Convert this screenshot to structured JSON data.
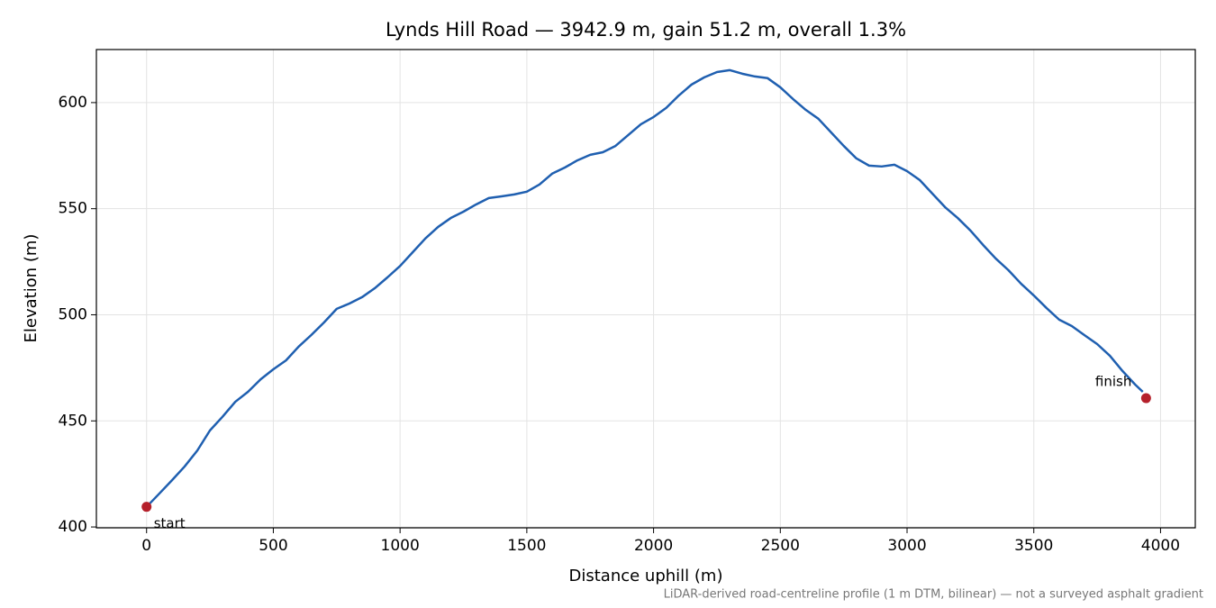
{
  "chart_data": {
    "type": "line",
    "title": "Lynds Hill Road — 3942.9 m, gain 51.2 m, overall 1.3%",
    "xlabel": "Distance uphill (m)",
    "ylabel": "Elevation (m)",
    "note": "LiDAR-derived road-centreline profile (1 m DTM, bilinear) — not a surveyed asphalt gradient",
    "x": [
      0,
      50,
      100,
      150,
      200,
      250,
      300,
      350,
      400,
      450,
      500,
      550,
      600,
      650,
      700,
      750,
      800,
      850,
      900,
      950,
      1000,
      1050,
      1100,
      1150,
      1200,
      1250,
      1300,
      1350,
      1400,
      1450,
      1500,
      1550,
      1600,
      1650,
      1700,
      1750,
      1800,
      1850,
      1900,
      1950,
      2000,
      2050,
      2100,
      2150,
      2200,
      2250,
      2300,
      2350,
      2400,
      2450,
      2500,
      2550,
      2600,
      2650,
      2700,
      2750,
      2800,
      2850,
      2900,
      2950,
      3000,
      3050,
      3100,
      3150,
      3200,
      3250,
      3300,
      3350,
      3400,
      3450,
      3500,
      3550,
      3600,
      3650,
      3700,
      3750,
      3800,
      3850,
      3900,
      3930
    ],
    "series": [
      {
        "color": "#1f5fb0",
        "values": [
          409.5,
          415.7,
          422,
          428.5,
          436,
          445.5,
          452,
          459,
          463.7,
          469.6,
          474.3,
          478.5,
          485,
          490.5,
          496.4,
          502.8,
          505.3,
          508.3,
          512.5,
          517.6,
          523,
          529.5,
          536,
          541.4,
          545.6,
          548.6,
          552,
          555,
          555.8,
          556.7,
          558,
          561.4,
          566.5,
          569.4,
          572.8,
          575.4,
          576.6,
          579.6,
          584.7,
          589.8,
          593.2,
          597.5,
          603.4,
          608.5,
          611.9,
          614.4,
          615.3,
          613.6,
          612.3,
          611.5,
          607.2,
          601.7,
          596.6,
          592.4,
          586,
          579.6,
          573.7,
          570.3,
          569.9,
          570.7,
          567.7,
          563.5,
          557.1,
          550.7,
          545.6,
          539.7,
          532.9,
          526.5,
          521,
          514.6,
          509.1,
          503.2,
          497.7,
          494.7,
          490.4,
          486.2,
          480.7,
          473.5,
          467.1,
          463.7
        ]
      }
    ],
    "markers": [
      {
        "label": "start",
        "x": 0,
        "y": 409.5,
        "color": "#b5202b"
      },
      {
        "label": "finish",
        "x": 3942.9,
        "y": 460.7,
        "color": "#b5202b"
      }
    ],
    "xlim": [
      -198,
      4137
    ],
    "ylim": [
      399.6,
      625
    ],
    "xticks": [
      0,
      500,
      1000,
      1500,
      2000,
      2500,
      3000,
      3500,
      4000
    ],
    "yticks": [
      400,
      450,
      500,
      550,
      600
    ],
    "grid": true
  }
}
